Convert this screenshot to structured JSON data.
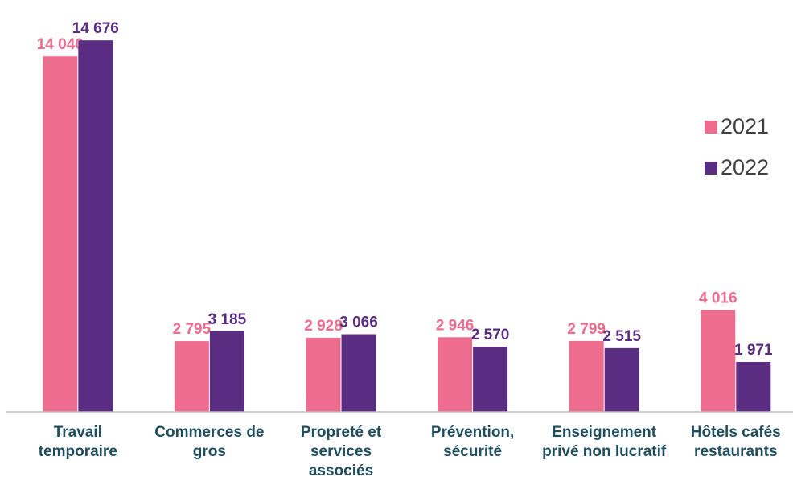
{
  "chart_data": {
    "type": "bar",
    "categories": [
      "Travail temporaire",
      "Commerces de gros",
      "Propreté et services associés",
      "Prévention, sécurité",
      "Enseignement privé non lucratif",
      "Hôtels cafés restaurants"
    ],
    "series": [
      {
        "name": "2021",
        "color": "#ee6d8f",
        "label_color": "#ee6d8f",
        "values": [
          14040,
          2795,
          2928,
          2946,
          2799,
          4016
        ],
        "value_labels": [
          "14 040",
          "2 795",
          "2 928",
          "2 946",
          "2 799",
          "4 016"
        ]
      },
      {
        "name": "2022",
        "color": "#5a2d82",
        "label_color": "#5a2d82",
        "values": [
          14676,
          3185,
          3066,
          2570,
          2515,
          1971
        ],
        "value_labels": [
          "14 676",
          "3 185",
          "3 066",
          "2 570",
          "2 515",
          "1 971"
        ]
      }
    ],
    "ylim": [
      0,
      15000
    ],
    "legend": "right"
  }
}
